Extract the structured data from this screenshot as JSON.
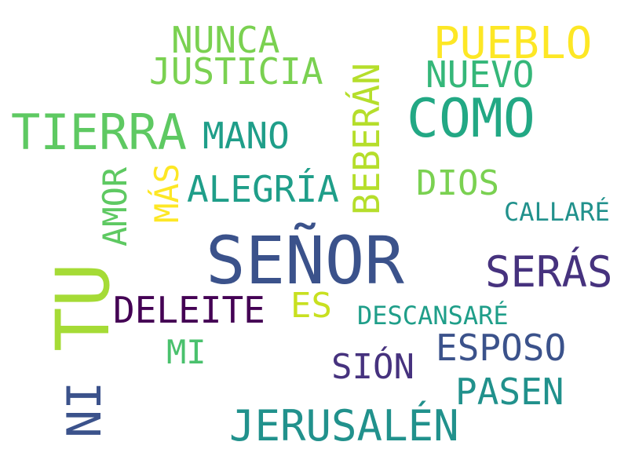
{
  "word_cloud": {
    "words": [
      {
        "id": "senor",
        "text": "SEÑOR",
        "color": "#3b528b"
      },
      {
        "id": "tu",
        "text": "TU",
        "color": "#a5db36"
      },
      {
        "id": "como",
        "text": "COMO",
        "color": "#22a884"
      },
      {
        "id": "tierra",
        "text": "TIERRA",
        "color": "#5ec962"
      },
      {
        "id": "pueblo",
        "text": "PUEBLO",
        "color": "#fde725"
      },
      {
        "id": "jerusalen",
        "text": "JERUSALÉN",
        "color": "#21918c"
      },
      {
        "id": "seras",
        "text": "SERÁS",
        "color": "#46327e"
      },
      {
        "id": "justicia",
        "text": "JUSTICIA",
        "color": "#7ad151"
      },
      {
        "id": "bebéran",
        "text": "BEBERÁN",
        "color": "#b5de2b"
      },
      {
        "id": "nunca",
        "text": "NUNCA",
        "color": "#7ad151"
      },
      {
        "id": "nuevo",
        "text": "NUEVO",
        "color": "#35b779"
      },
      {
        "id": "mano",
        "text": "MANO",
        "color": "#1f9e89"
      },
      {
        "id": "alegria",
        "text": "ALEGRÍA",
        "color": "#1f9e89"
      },
      {
        "id": "deleite",
        "text": "DELEITE",
        "color": "#440154"
      },
      {
        "id": "esposo",
        "text": "ESPOSO",
        "color": "#3b528b"
      },
      {
        "id": "pasen",
        "text": "PASEN",
        "color": "#21918c"
      },
      {
        "id": "ni",
        "text": "NI",
        "color": "#3b528b"
      },
      {
        "id": "sion",
        "text": "SIÓN",
        "color": "#46327e"
      },
      {
        "id": "dios",
        "text": "DIOS",
        "color": "#7ad151"
      },
      {
        "id": "amor",
        "text": "AMOR",
        "color": "#5ec962"
      },
      {
        "id": "mas",
        "text": "MÁS",
        "color": "#fde725"
      },
      {
        "id": "es",
        "text": "ES",
        "color": "#c8e020"
      },
      {
        "id": "mi",
        "text": "MI",
        "color": "#4ac16d"
      },
      {
        "id": "callare",
        "text": "CALLARÉ",
        "color": "#21918c"
      },
      {
        "id": "descansare",
        "text": "DESCANSARÉ",
        "color": "#1f9e89"
      }
    ]
  }
}
